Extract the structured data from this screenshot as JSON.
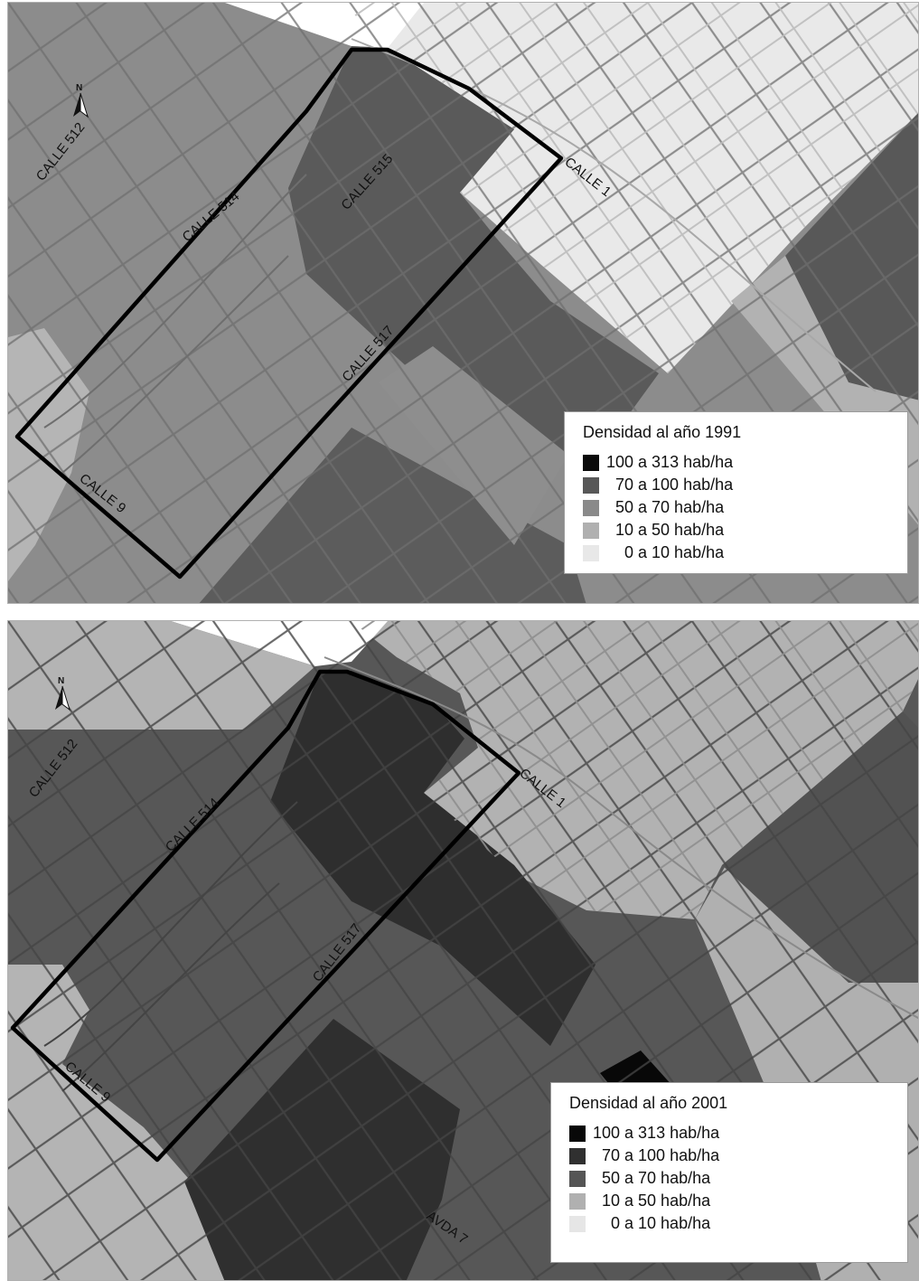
{
  "panels": [
    {
      "id": "1991",
      "legend": {
        "title": "Densidad al año 1991",
        "items": [
          {
            "label": "100 a 313 hab/ha",
            "color": "#0a0a0a"
          },
          {
            "label": "  70 a 100 hab/ha",
            "color": "#585858"
          },
          {
            "label": "  50 a 70 hab/ha",
            "color": "#8a8a8a"
          },
          {
            "label": "  10 a 50 hab/ha",
            "color": "#b0b0b0"
          },
          {
            "label": "    0 a 10 hab/ha",
            "color": "#e8e8e8"
          }
        ]
      },
      "streets": [
        "CALLE 512",
        "CALLE 514",
        "CALLE 515",
        "CALLE 1",
        "CALLE 517",
        "CALLE 9"
      ],
      "north_label": "N"
    },
    {
      "id": "2001",
      "legend": {
        "title": "Densidad al año 2001",
        "items": [
          {
            "label": "100 a 313 hab/ha",
            "color": "#080808"
          },
          {
            "label": "  70 a 100 hab/ha",
            "color": "#303030"
          },
          {
            "label": "  50 a 70 hab/ha",
            "color": "#555555"
          },
          {
            "label": "  10 a 50 hab/ha",
            "color": "#b0b0b0"
          },
          {
            "label": "    0 a 10 hab/ha",
            "color": "#e6e6e6"
          }
        ]
      },
      "streets": [
        "CALLE 512",
        "CALLE 514",
        "CALLE 1",
        "CALLE 517",
        "CALLE 9",
        "AVDA 7"
      ],
      "north_label": "N"
    }
  ]
}
